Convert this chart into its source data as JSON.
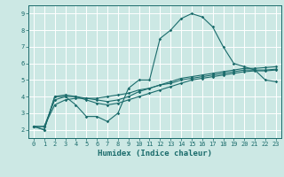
{
  "xlabel": "Humidex (Indice chaleur)",
  "background_color": "#cce8e4",
  "grid_color": "#ffffff",
  "line_color": "#1a6b6b",
  "x": [
    0,
    1,
    2,
    3,
    4,
    5,
    6,
    7,
    8,
    9,
    10,
    11,
    12,
    13,
    14,
    15,
    16,
    17,
    18,
    19,
    20,
    21,
    22,
    23
  ],
  "line1_y": [
    2.2,
    2.0,
    4.0,
    4.0,
    3.5,
    2.8,
    2.8,
    2.5,
    3.0,
    4.5,
    5.0,
    5.0,
    7.5,
    8.0,
    8.7,
    9.0,
    8.8,
    8.2,
    7.0,
    6.0,
    5.8,
    5.6,
    5.0,
    4.9
  ],
  "line2_y": [
    2.2,
    2.0,
    4.0,
    4.1,
    4.0,
    3.8,
    3.6,
    3.5,
    3.6,
    3.8,
    4.0,
    4.2,
    4.4,
    4.6,
    4.8,
    5.0,
    5.1,
    5.2,
    5.3,
    5.4,
    5.5,
    5.55,
    5.55,
    5.6
  ],
  "line3_y": [
    2.2,
    2.2,
    3.8,
    4.0,
    4.0,
    3.9,
    3.8,
    3.7,
    3.8,
    4.0,
    4.3,
    4.5,
    4.7,
    4.9,
    5.1,
    5.2,
    5.3,
    5.4,
    5.5,
    5.6,
    5.7,
    5.7,
    5.75,
    5.8
  ],
  "line4_y": [
    2.2,
    2.2,
    3.5,
    3.8,
    3.9,
    3.9,
    3.9,
    4.0,
    4.1,
    4.2,
    4.4,
    4.5,
    4.7,
    4.8,
    5.0,
    5.1,
    5.2,
    5.3,
    5.4,
    5.5,
    5.6,
    5.6,
    5.6,
    5.65
  ],
  "xlim": [
    -0.5,
    23.5
  ],
  "ylim": [
    1.5,
    9.5
  ],
  "yticks": [
    2,
    3,
    4,
    5,
    6,
    7,
    8,
    9
  ],
  "xticks": [
    0,
    1,
    2,
    3,
    4,
    5,
    6,
    7,
    8,
    9,
    10,
    11,
    12,
    13,
    14,
    15,
    16,
    17,
    18,
    19,
    20,
    21,
    22,
    23
  ]
}
